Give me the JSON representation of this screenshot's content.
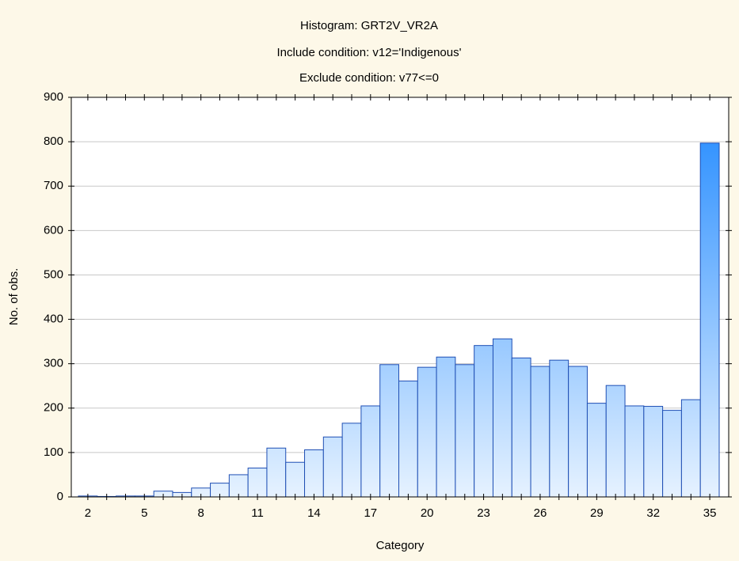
{
  "chart_data": {
    "type": "bar",
    "title": "Histogram: GRT2V_VR2A",
    "subtitles": [
      "Include condition: v12='Indigenous'",
      "Exclude condition: v77<=0"
    ],
    "x_label": "Category",
    "y_label": "No. of obs.",
    "categories": [
      "2",
      null,
      null,
      "5",
      null,
      null,
      "8",
      null,
      null,
      "11",
      null,
      null,
      "14",
      null,
      null,
      "17",
      null,
      null,
      "20",
      null,
      null,
      "23",
      null,
      null,
      "26",
      null,
      null,
      "29",
      null,
      null,
      "32",
      null,
      null,
      "35"
    ],
    "values": [
      2,
      1,
      2,
      2,
      13,
      10,
      20,
      31,
      50,
      65,
      110,
      78,
      106,
      135,
      166,
      205,
      298,
      261,
      292,
      315,
      298,
      341,
      356,
      313,
      294,
      308,
      294,
      211,
      251,
      205,
      204,
      195,
      219,
      797
    ],
    "color": "#1e88ff",
    "ylim": [
      0,
      900
    ],
    "yticks": [
      0,
      100,
      200,
      300,
      400,
      500,
      600,
      700,
      800,
      900
    ],
    "grid": true
  }
}
